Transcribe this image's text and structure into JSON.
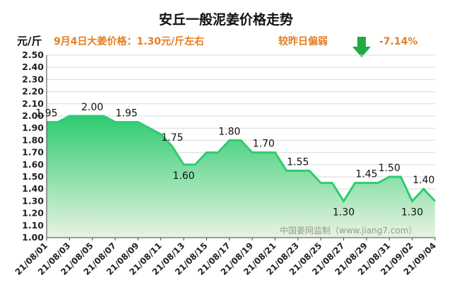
{
  "chart_data": {
    "type": "area",
    "title": "安丘一般泥姜价格走势",
    "ylabel": "元/斤",
    "ylim": [
      1.0,
      2.5
    ],
    "ystep": 0.1,
    "x_tick_labels": [
      "21/08/01",
      "21/08/03",
      "21/08/05",
      "21/08/07",
      "21/08/09",
      "21/08/11",
      "21/08/13",
      "21/08/15",
      "21/08/17",
      "21/08/19",
      "21/08/21",
      "21/08/23",
      "21/08/25",
      "21/08/27",
      "21/08/29",
      "21/08/31",
      "21/09/02",
      "21/09/04"
    ],
    "x": [
      "21/08/01",
      "21/08/02",
      "21/08/03",
      "21/08/04",
      "21/08/05",
      "21/08/06",
      "21/08/07",
      "21/08/08",
      "21/08/09",
      "21/08/10",
      "21/08/11",
      "21/08/12",
      "21/08/13",
      "21/08/14",
      "21/08/15",
      "21/08/16",
      "21/08/17",
      "21/08/18",
      "21/08/19",
      "21/08/20",
      "21/08/21",
      "21/08/22",
      "21/08/23",
      "21/08/24",
      "21/08/25",
      "21/08/26",
      "21/08/27",
      "21/08/28",
      "21/08/29",
      "21/08/30",
      "21/08/31",
      "21/09/01",
      "21/09/02",
      "21/09/03",
      "21/09/04"
    ],
    "values": [
      1.95,
      1.95,
      2.0,
      2.0,
      2.0,
      2.0,
      1.95,
      1.95,
      1.95,
      1.9,
      1.85,
      1.75,
      1.6,
      1.6,
      1.7,
      1.7,
      1.8,
      1.8,
      1.7,
      1.7,
      1.7,
      1.55,
      1.55,
      1.55,
      1.45,
      1.45,
      1.3,
      1.45,
      1.45,
      1.45,
      1.5,
      1.5,
      1.3,
      1.4,
      1.3
    ],
    "data_labels": [
      {
        "index": 0,
        "text": "1.95",
        "pos": "above"
      },
      {
        "index": 4,
        "text": "2.00",
        "pos": "above"
      },
      {
        "index": 7,
        "text": "1.95",
        "pos": "above"
      },
      {
        "index": 11,
        "text": "1.75",
        "pos": "above"
      },
      {
        "index": 12,
        "text": "1.60",
        "pos": "below"
      },
      {
        "index": 16,
        "text": "1.80",
        "pos": "above"
      },
      {
        "index": 19,
        "text": "1.70",
        "pos": "above"
      },
      {
        "index": 22,
        "text": "1.55",
        "pos": "above"
      },
      {
        "index": 26,
        "text": "1.30",
        "pos": "below"
      },
      {
        "index": 28,
        "text": "1.45",
        "pos": "above"
      },
      {
        "index": 30,
        "text": "1.50",
        "pos": "above"
      },
      {
        "index": 33,
        "text": "1.40",
        "pos": "above"
      },
      {
        "index": 32,
        "text": "1.30",
        "pos": "below"
      }
    ]
  },
  "info": {
    "today_text": "9月4日大姜价格：1.30元/斤左右",
    "compare_text": "较昨日偏弱",
    "change_text": "-7.14%",
    "watermark": "中国姜网监制（www.jiang7.com）"
  },
  "colors": {
    "line": "#2ecc71",
    "fill_top": "#2ecc71",
    "fill_bottom": "#e9f3e1",
    "arrow": "#22aa44",
    "info": "#e67e22"
  }
}
